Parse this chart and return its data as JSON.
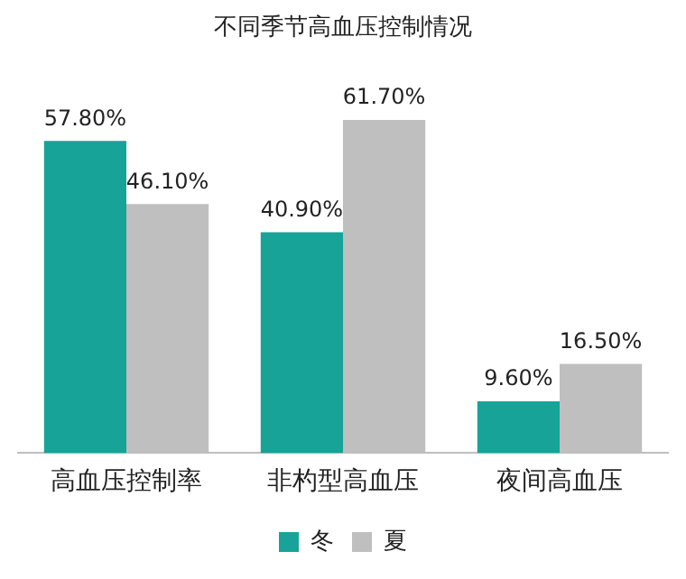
{
  "chart_data": {
    "type": "bar",
    "title": "不同季节高血压控制情况",
    "categories": [
      "高血压控制率",
      "非杓型高血压",
      "夜间高血压"
    ],
    "series": [
      {
        "name": "冬",
        "color": "#17a398",
        "values": [
          57.8,
          40.9,
          9.6
        ],
        "value_labels": [
          "57.80%",
          "40.90%",
          "9.60%"
        ]
      },
      {
        "name": "夏",
        "color": "#bfbfbf",
        "values": [
          46.1,
          61.7,
          16.5
        ],
        "value_labels": [
          "46.10%",
          "61.70%",
          "16.50%"
        ]
      }
    ],
    "legend": "bottom",
    "grid": false
  }
}
